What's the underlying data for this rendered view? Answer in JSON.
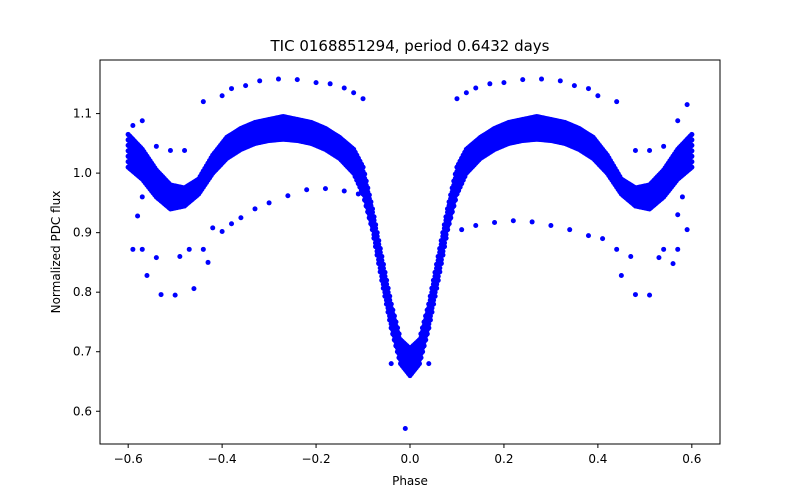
{
  "chart_data": {
    "type": "scatter",
    "title": "TIC 0168851294, period 0.6432 days",
    "xlabel": "Phase",
    "ylabel": "Normalized PDC flux",
    "xlim": [
      -0.66,
      0.66
    ],
    "ylim": [
      0.545,
      1.19
    ],
    "xticks": [
      -0.6,
      -0.4,
      -0.2,
      0.0,
      0.2,
      0.4,
      0.6
    ],
    "xtick_labels": [
      "−0.6",
      "−0.4",
      "−0.2",
      "0.0",
      "0.2",
      "0.4",
      "0.6"
    ],
    "yticks": [
      0.6,
      0.7,
      0.8,
      0.9,
      1.0,
      1.1
    ],
    "ytick_labels": [
      "0.6",
      "0.7",
      "0.8",
      "0.9",
      "1.0",
      "1.1"
    ],
    "grid": false,
    "legend": "none",
    "marker_color": "#0000ff",
    "series": [
      {
        "band_x": [
          -0.6,
          -0.57,
          -0.54,
          -0.51,
          -0.48,
          -0.45,
          -0.42,
          -0.39,
          -0.36,
          -0.33,
          -0.3,
          -0.27,
          -0.24,
          -0.21,
          -0.18,
          -0.15,
          -0.12,
          -0.1,
          -0.08,
          -0.06,
          -0.04,
          -0.02,
          0.0,
          0.02,
          0.04,
          0.06,
          0.08,
          0.1,
          0.12,
          0.15,
          0.18,
          0.21,
          0.24,
          0.27,
          0.3,
          0.33,
          0.36,
          0.39,
          0.42,
          0.45,
          0.48,
          0.51,
          0.54,
          0.57,
          0.6
        ],
        "band_low": [
          1.01,
          0.99,
          0.96,
          0.94,
          0.945,
          0.965,
          1.0,
          1.025,
          1.04,
          1.05,
          1.055,
          1.057,
          1.055,
          1.05,
          1.04,
          1.025,
          1.0,
          0.965,
          0.905,
          0.82,
          0.74,
          0.68,
          0.66,
          0.68,
          0.74,
          0.82,
          0.905,
          0.965,
          1.0,
          1.025,
          1.04,
          1.05,
          1.055,
          1.057,
          1.055,
          1.05,
          1.04,
          1.025,
          1.0,
          0.965,
          0.945,
          0.94,
          0.96,
          0.99,
          1.01
        ],
        "band_high": [
          1.065,
          1.04,
          1.005,
          0.98,
          0.975,
          0.99,
          1.03,
          1.06,
          1.075,
          1.085,
          1.09,
          1.095,
          1.09,
          1.085,
          1.075,
          1.06,
          1.04,
          1.01,
          0.94,
          0.86,
          0.78,
          0.72,
          0.705,
          0.72,
          0.78,
          0.86,
          0.94,
          1.01,
          1.04,
          1.06,
          1.075,
          1.085,
          1.09,
          1.095,
          1.09,
          1.085,
          1.075,
          1.06,
          1.03,
          0.99,
          0.975,
          0.98,
          1.005,
          1.04,
          1.065
        ],
        "outliers": [
          [
            -0.59,
            1.08
          ],
          [
            -0.57,
            1.088
          ],
          [
            -0.54,
            1.045
          ],
          [
            -0.51,
            1.038
          ],
          [
            -0.48,
            1.038
          ],
          [
            -0.44,
            1.12
          ],
          [
            -0.4,
            1.13
          ],
          [
            -0.38,
            1.142
          ],
          [
            -0.35,
            1.147
          ],
          [
            -0.32,
            1.155
          ],
          [
            -0.28,
            1.158
          ],
          [
            -0.24,
            1.157
          ],
          [
            -0.2,
            1.152
          ],
          [
            -0.17,
            1.15
          ],
          [
            -0.14,
            1.143
          ],
          [
            -0.12,
            1.135
          ],
          [
            -0.1,
            1.125
          ],
          [
            0.1,
            1.125
          ],
          [
            0.12,
            1.135
          ],
          [
            0.14,
            1.143
          ],
          [
            0.17,
            1.15
          ],
          [
            0.2,
            1.152
          ],
          [
            0.24,
            1.157
          ],
          [
            0.28,
            1.158
          ],
          [
            0.32,
            1.155
          ],
          [
            0.35,
            1.147
          ],
          [
            0.38,
            1.142
          ],
          [
            0.4,
            1.13
          ],
          [
            0.44,
            1.12
          ],
          [
            0.48,
            1.038
          ],
          [
            0.51,
            1.038
          ],
          [
            0.54,
            1.045
          ],
          [
            0.57,
            1.088
          ],
          [
            0.59,
            1.115
          ],
          [
            -0.59,
            0.872
          ],
          [
            -0.57,
            0.872
          ],
          [
            -0.56,
            0.828
          ],
          [
            -0.54,
            0.858
          ],
          [
            -0.53,
            0.796
          ],
          [
            -0.5,
            0.795
          ],
          [
            -0.49,
            0.86
          ],
          [
            -0.47,
            0.872
          ],
          [
            -0.46,
            0.806
          ],
          [
            -0.44,
            0.872
          ],
          [
            -0.43,
            0.85
          ],
          [
            -0.42,
            0.908
          ],
          [
            -0.4,
            0.902
          ],
          [
            -0.38,
            0.915
          ],
          [
            -0.36,
            0.925
          ],
          [
            -0.33,
            0.94
          ],
          [
            -0.3,
            0.95
          ],
          [
            -0.26,
            0.962
          ],
          [
            -0.22,
            0.972
          ],
          [
            -0.18,
            0.974
          ],
          [
            -0.14,
            0.97
          ],
          [
            -0.11,
            0.965
          ],
          [
            0.11,
            0.905
          ],
          [
            0.14,
            0.912
          ],
          [
            0.18,
            0.917
          ],
          [
            0.22,
            0.92
          ],
          [
            0.26,
            0.918
          ],
          [
            0.3,
            0.912
          ],
          [
            0.34,
            0.905
          ],
          [
            0.38,
            0.895
          ],
          [
            0.41,
            0.89
          ],
          [
            0.44,
            0.872
          ],
          [
            0.45,
            0.828
          ],
          [
            0.47,
            0.86
          ],
          [
            0.48,
            0.796
          ],
          [
            0.51,
            0.795
          ],
          [
            0.53,
            0.858
          ],
          [
            0.54,
            0.872
          ],
          [
            0.56,
            0.848
          ],
          [
            0.57,
            0.872
          ],
          [
            0.59,
            0.905
          ],
          [
            -0.58,
            0.928
          ],
          [
            -0.57,
            0.96
          ],
          [
            0.57,
            0.93
          ],
          [
            0.58,
            0.96
          ],
          [
            -0.04,
            0.68
          ],
          [
            0.04,
            0.68
          ],
          [
            -0.01,
            0.571
          ]
        ]
      }
    ]
  }
}
